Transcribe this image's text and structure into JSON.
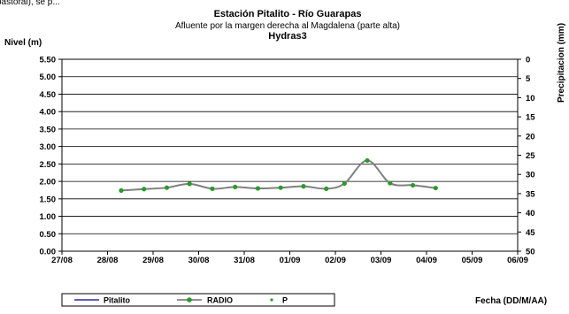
{
  "header_fragment": "pastoral), se p...",
  "chart_data": {
    "type": "line",
    "title": "Estación Pitalito  - Río Guarapas",
    "subtitle": "Afluente por la margen derecha al Magdalena (parte alta)",
    "subtitle2": "Hydras3",
    "ylabel": "Nivel (m)",
    "y2label": "Precipitacion (mm)",
    "xlabel": "Fecha (DD/M/AA)",
    "ylim": [
      0,
      5.5
    ],
    "y2lim": [
      0,
      50
    ],
    "y2_inverted": true,
    "grid": true,
    "legend_placement": "bottom",
    "x_ticks": [
      "27/08",
      "28/08",
      "29/08",
      "30/08",
      "31/08",
      "01/09",
      "02/09",
      "03/09",
      "04/09",
      "05/09",
      "06/09"
    ],
    "y_ticks": [
      "0.00",
      "0.50",
      "1.00",
      "1.50",
      "2.00",
      "2.50",
      "3.00",
      "3.50",
      "4.00",
      "4.50",
      "5.00",
      "5.50"
    ],
    "y2_ticks": [
      "0",
      "5",
      "10",
      "15",
      "20",
      "25",
      "30",
      "35",
      "40",
      "45",
      "50"
    ],
    "series": [
      {
        "name": "Pitalito",
        "color": "#00008b",
        "x": [],
        "values": []
      },
      {
        "name": "RADIO",
        "color": "#808080",
        "marker_color": "#2a9a2a",
        "x": [
          1.3,
          1.8,
          2.3,
          2.8,
          3.3,
          3.8,
          4.3,
          4.8,
          5.3,
          5.8,
          6.2,
          6.7,
          7.2,
          7.7,
          8.2
        ],
        "values": [
          1.74,
          1.78,
          1.82,
          1.93,
          1.79,
          1.84,
          1.8,
          1.82,
          1.86,
          1.79,
          1.94,
          2.6,
          1.95,
          1.89,
          1.81
        ]
      },
      {
        "name": "P",
        "color": "#2a9a2a",
        "x": [],
        "values": []
      }
    ]
  }
}
